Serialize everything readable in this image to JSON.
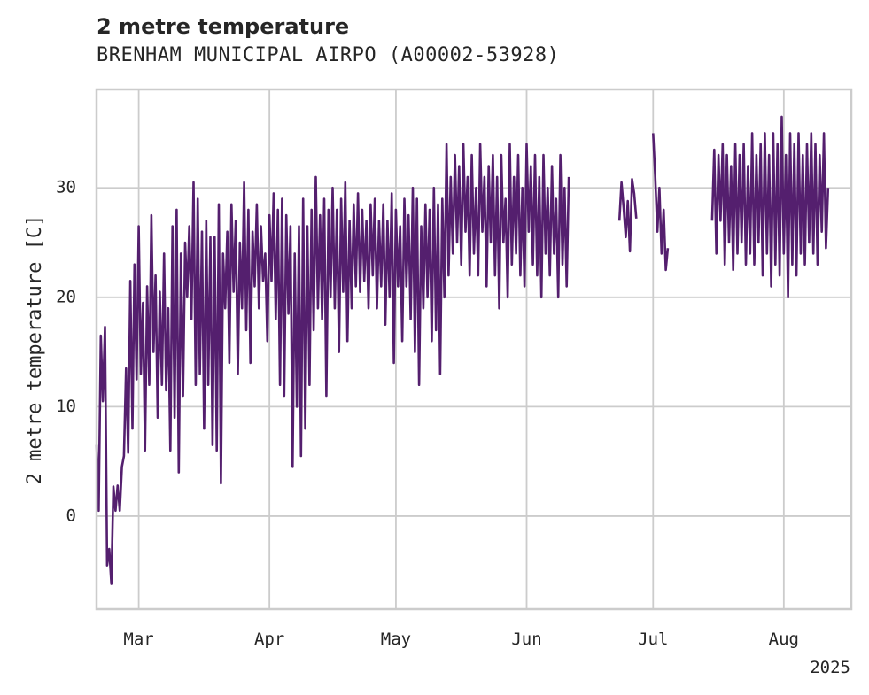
{
  "chart_data": {
    "type": "line",
    "title": "2 metre temperature",
    "subtitle": "BRENHAM MUNICIPAL AIRPO (A00002-53928)",
    "xlabel": "",
    "ylabel": "2 metre temperature [C]",
    "x_tick_labels": [
      "Mar",
      "Apr",
      "May",
      "Jun",
      "Jul",
      "Aug"
    ],
    "x_year_label": "2025",
    "x_ticks": [
      "2025-03-01",
      "2025-04-01",
      "2025-05-01",
      "2025-06-01",
      "2025-07-01",
      "2025-08-01"
    ],
    "xlim": [
      "2025-02-19",
      "2025-08-17"
    ],
    "yticks": [
      0,
      10,
      20,
      30
    ],
    "ylim": [
      -8.5,
      39
    ],
    "grid": true,
    "color": "#541f6e",
    "series": [
      {
        "values_segments": [
          {
            "start": "2025-02-19",
            "step_hours": 12,
            "y": [
              6.5,
              0.5,
              16.5,
              10.5,
              17.3,
              -4.5,
              -3,
              -6.2,
              2.7,
              0.5,
              2.8,
              0.5,
              4.5,
              5.5,
              13.5,
              5.8,
              21.5,
              8,
              23,
              12.5,
              26.5,
              13,
              19.5,
              6,
              21,
              12,
              27.5,
              15,
              22,
              9,
              20.5,
              12,
              24,
              11.5,
              19,
              6,
              26.5,
              9,
              28,
              4,
              24,
              11,
              25,
              20,
              26.5,
              18,
              30.5,
              12,
              29,
              13,
              26,
              8,
              27,
              12,
              25.5,
              6.5,
              25.5,
              6,
              28.5,
              3,
              24,
              19,
              26,
              14,
              28.5,
              20.5,
              27,
              13,
              25,
              19,
              30.5,
              17,
              28,
              14,
              26,
              21,
              28.5,
              19,
              26.5,
              21.5,
              24,
              16,
              27.5,
              21.5,
              29.5,
              18,
              28,
              12,
              29,
              11,
              27.5,
              18.5,
              26.5,
              4.5,
              24,
              10,
              26.5,
              5.5,
              29,
              8,
              26.5,
              12,
              28,
              17,
              31,
              19,
              27.5,
              18,
              29,
              11,
              28,
              20,
              30,
              19,
              28,
              15,
              29,
              20.5,
              30.5,
              16,
              27,
              19,
              28.5,
              21,
              29.5,
              20.5,
              28,
              21.5,
              27,
              19,
              28.5,
              22,
              29,
              19,
              27,
              21,
              28.5,
              17.5,
              27,
              20,
              29.5,
              14,
              28,
              21,
              26.5,
              16,
              29,
              21,
              27.5,
              18,
              30,
              15,
              29,
              12,
              26.5,
              19,
              28.5,
              20,
              28,
              16,
              30,
              17,
              28.5,
              13,
              29,
              20,
              34,
              22,
              31,
              24,
              33,
              25,
              32,
              23,
              34,
              26,
              31,
              22,
              33,
              24,
              30,
              22,
              34,
              26,
              31,
              21,
              32,
              25,
              33,
              22,
              31,
              19,
              33,
              25,
              29,
              20,
              34,
              23,
              31,
              24,
              33,
              22,
              30,
              21,
              34,
              26,
              32,
              23,
              33,
              22,
              31,
              20,
              33,
              24,
              30,
              22,
              32,
              24,
              29,
              20,
              33,
              23,
              30,
              21,
              31
            ]
          },
          {
            "start": "2025-06-23",
            "step_hours": 12,
            "y": [
              27,
              30.5,
              28.2,
              25.5,
              28.8,
              24.2,
              30.8,
              29.5,
              27.2
            ]
          },
          {
            "start": "2025-07-01",
            "step_hours": 12,
            "y": [
              35,
              31,
              26,
              30,
              24,
              28,
              22.5,
              24.5
            ]
          },
          {
            "start": "2025-07-15",
            "step_hours": 12,
            "y": [
              27,
              33.5,
              24,
              33,
              27,
              34,
              23,
              33,
              25,
              32,
              22.5,
              34,
              24,
              33,
              25,
              34,
              23,
              32,
              24,
              35,
              23,
              33,
              25,
              34,
              22,
              35,
              24,
              33,
              21,
              35,
              23,
              34,
              22,
              36.5,
              24,
              33,
              20,
              35,
              23,
              34,
              22,
              35,
              24,
              33,
              23,
              34,
              25,
              35,
              24,
              34,
              23,
              33,
              26,
              35,
              24.5,
              30
            ]
          }
        ]
      }
    ]
  }
}
